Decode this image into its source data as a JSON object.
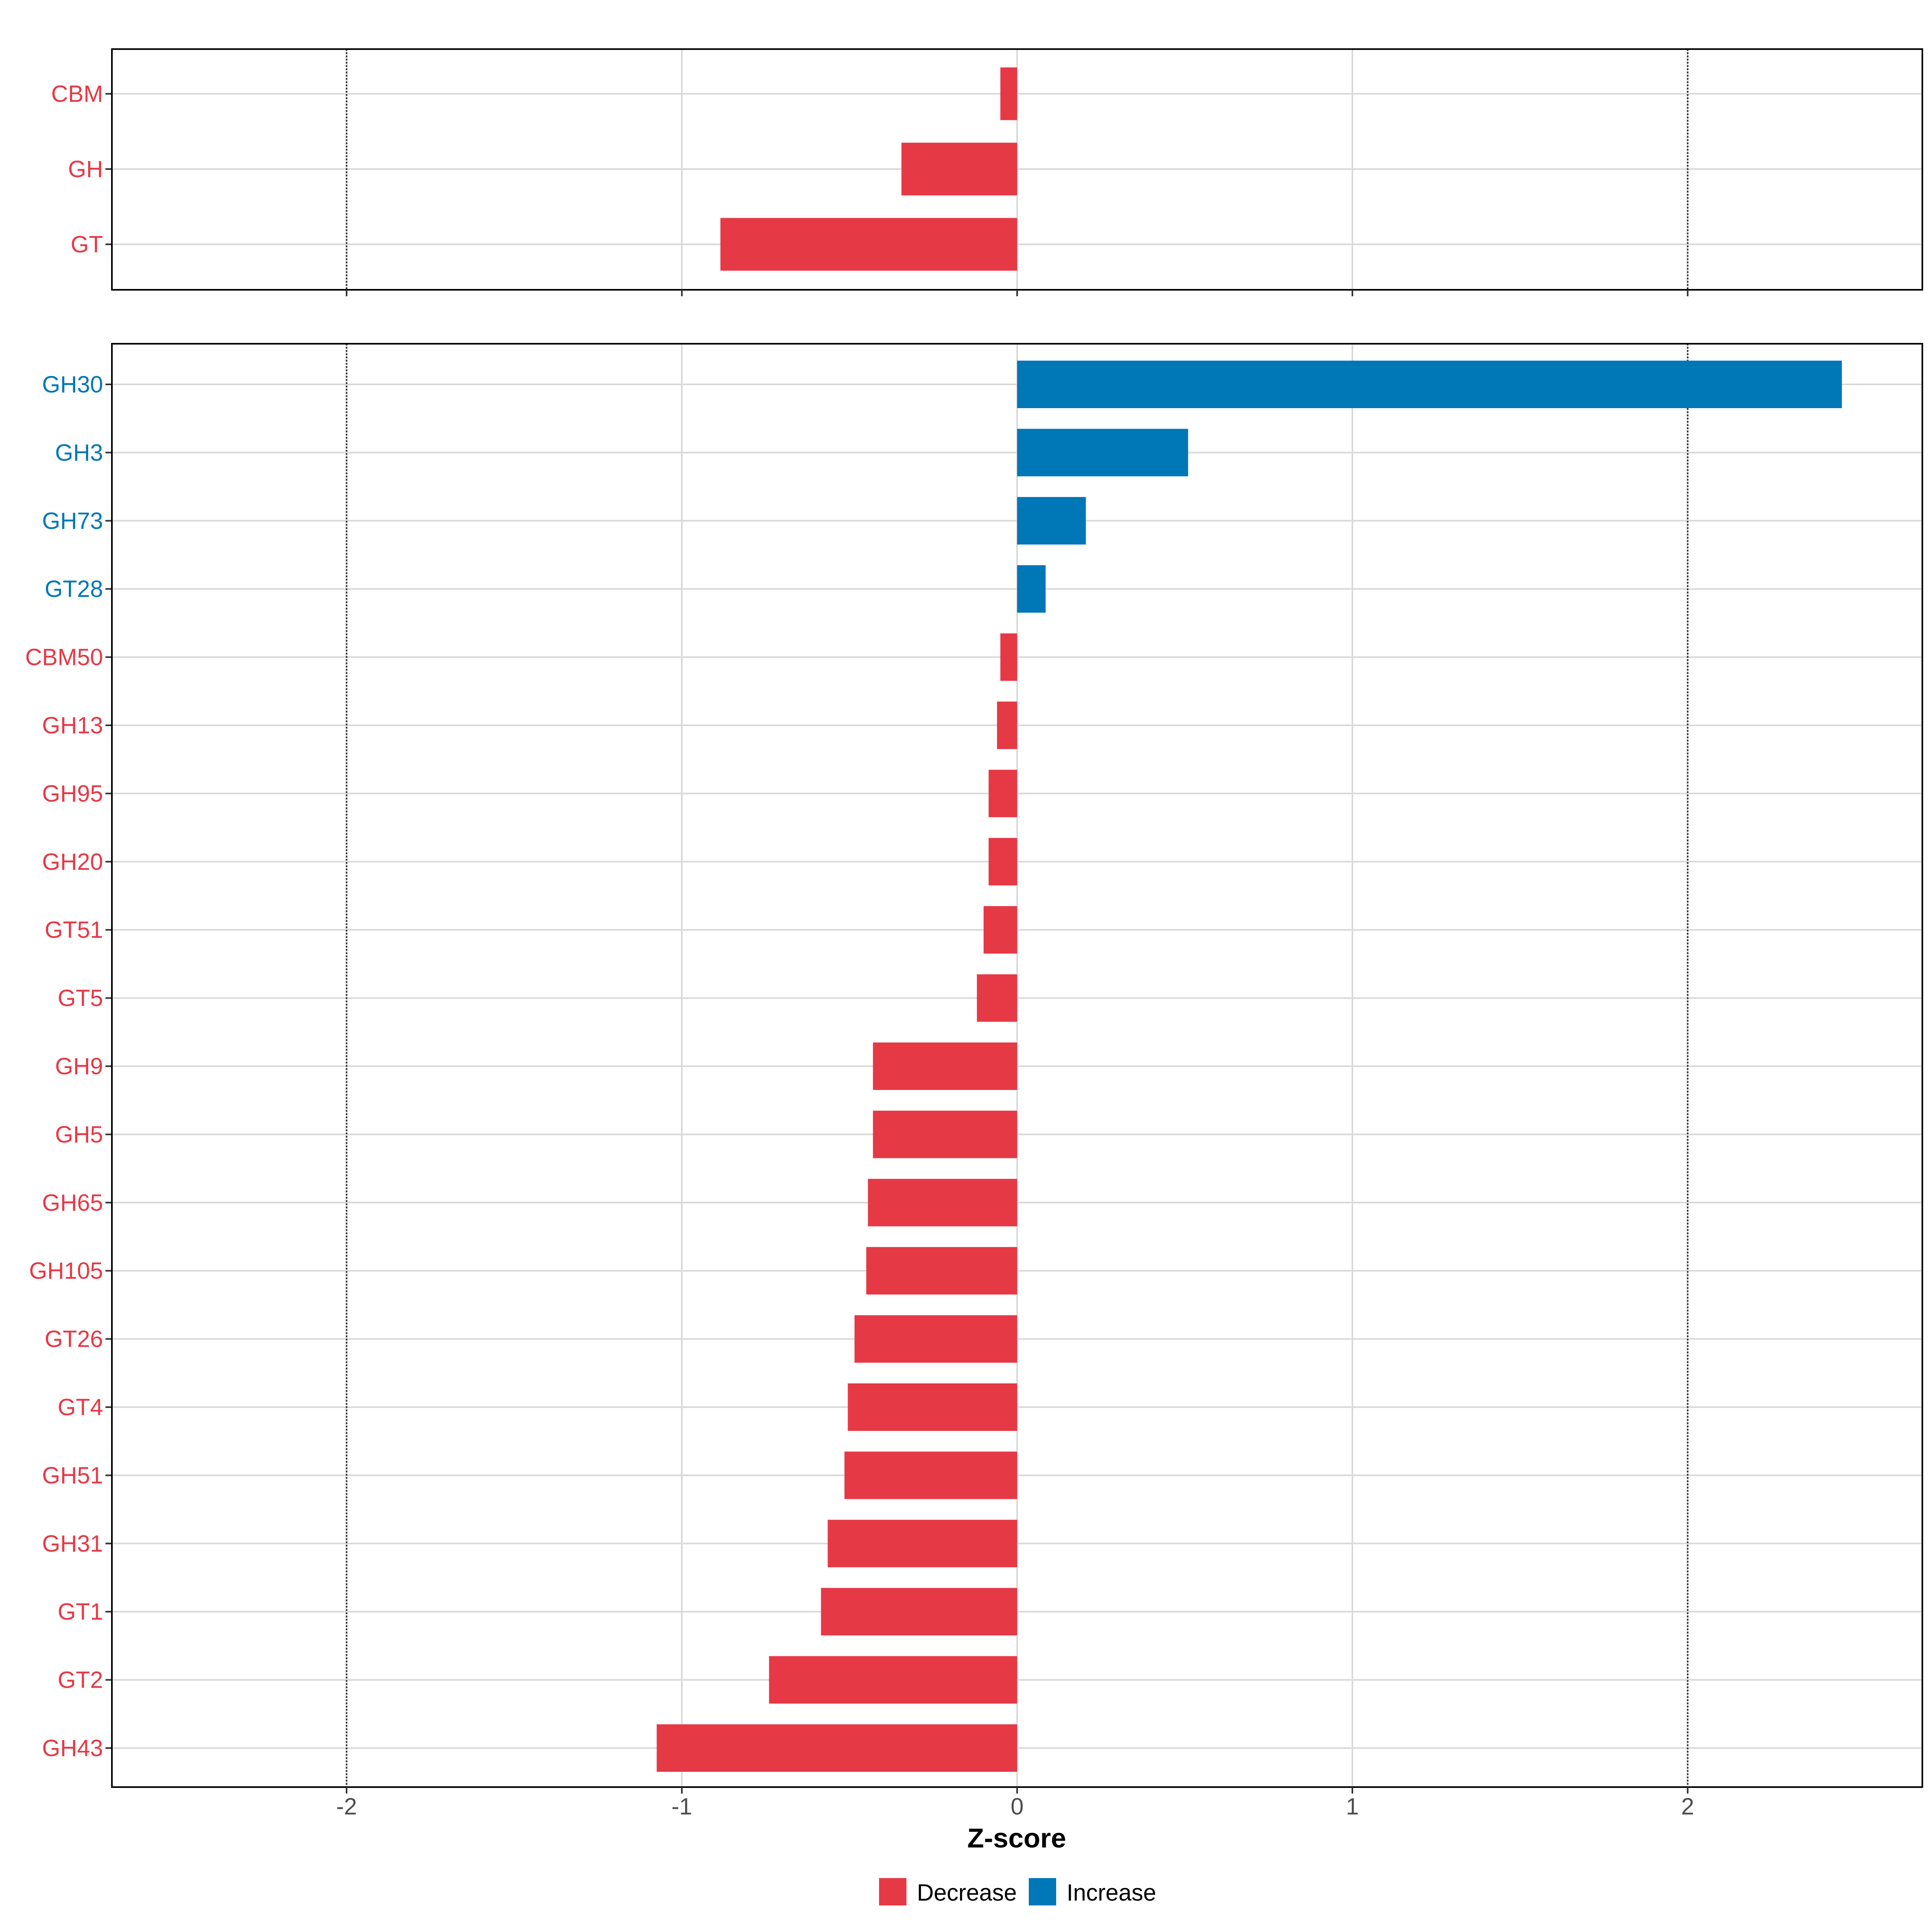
{
  "chart_data": {
    "type": "bar",
    "orientation": "horizontal",
    "xlabel": "Z-score",
    "xlim": [
      -2.7,
      2.7
    ],
    "x_ticks": [
      -2,
      -1,
      0,
      1,
      2
    ],
    "x_tick_labels": [
      "-2",
      "-1",
      "0",
      "1",
      "2"
    ],
    "reference_lines": [
      -2,
      2
    ],
    "grid": true,
    "legend": {
      "position": "bottom",
      "entries": [
        {
          "label": "Decrease",
          "color": "#E63946"
        },
        {
          "label": "Increase",
          "color": "#0077B6"
        }
      ]
    },
    "panels": [
      {
        "categories": [
          "CBM",
          "GH",
          "GT"
        ],
        "values": [
          -0.05,
          -0.345,
          -0.885
        ],
        "directions": [
          "Decrease",
          "Decrease",
          "Decrease"
        ]
      },
      {
        "categories": [
          "GH30",
          "GH3",
          "GH73",
          "GT28",
          "CBM50",
          "GH13",
          "GH95",
          "GH20",
          "GT51",
          "GT5",
          "GH9",
          "GH5",
          "GH65",
          "GH105",
          "GT26",
          "GT4",
          "GH51",
          "GH31",
          "GT1",
          "GT2",
          "GH43"
        ],
        "values": [
          2.46,
          0.51,
          0.205,
          0.085,
          -0.05,
          -0.06,
          -0.085,
          -0.085,
          -0.1,
          -0.12,
          -0.43,
          -0.43,
          -0.445,
          -0.45,
          -0.485,
          -0.505,
          -0.515,
          -0.565,
          -0.585,
          -0.74,
          -1.075
        ],
        "directions": [
          "Increase",
          "Increase",
          "Increase",
          "Increase",
          "Decrease",
          "Decrease",
          "Decrease",
          "Decrease",
          "Decrease",
          "Decrease",
          "Decrease",
          "Decrease",
          "Decrease",
          "Decrease",
          "Decrease",
          "Decrease",
          "Decrease",
          "Decrease",
          "Decrease",
          "Decrease",
          "Decrease"
        ]
      }
    ]
  }
}
